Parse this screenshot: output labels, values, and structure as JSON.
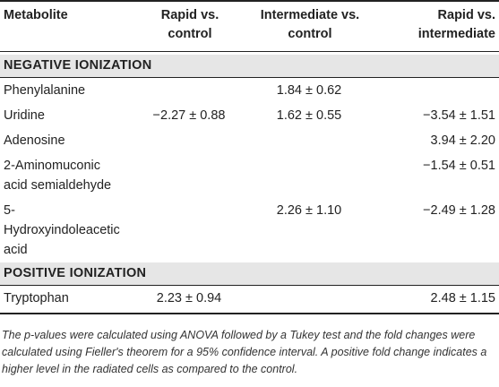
{
  "table": {
    "headers": {
      "metabolite": "Metabolite",
      "rapid_vs_control": "Rapid vs. control",
      "intermediate_vs_control": "Intermediate vs. control",
      "rapid_vs_intermediate": "Rapid vs. intermediate"
    },
    "sections": [
      {
        "title": "NEGATIVE IONIZATION",
        "rows": [
          {
            "metabolite": "Phenylalanine",
            "rapid_vs_control": "",
            "intermediate_vs_control": "1.84 ± 0.62",
            "rapid_vs_intermediate": ""
          },
          {
            "metabolite": "Uridine",
            "rapid_vs_control": "−2.27 ± 0.88",
            "intermediate_vs_control": "1.62 ± 0.55",
            "rapid_vs_intermediate": "−3.54 ± 1.51"
          },
          {
            "metabolite": "Adenosine",
            "rapid_vs_control": "",
            "intermediate_vs_control": "",
            "rapid_vs_intermediate": "3.94 ± 2.20"
          },
          {
            "metabolite": "2-Aminomuconic acid semialdehyde",
            "rapid_vs_control": "",
            "intermediate_vs_control": "",
            "rapid_vs_intermediate": "−1.54 ± 0.51"
          },
          {
            "metabolite": "5-Hydroxyindoleacetic acid",
            "rapid_vs_control": "",
            "intermediate_vs_control": "2.26 ± 1.10",
            "rapid_vs_intermediate": "−2.49 ± 1.28"
          }
        ]
      },
      {
        "title": "POSITIVE IONIZATION",
        "rows": [
          {
            "metabolite": "Tryptophan",
            "rapid_vs_control": "2.23 ± 0.94",
            "intermediate_vs_control": "",
            "rapid_vs_intermediate": "2.48 ± 1.15"
          }
        ]
      }
    ]
  },
  "footnote": "The p-values were calculated using ANOVA followed by a Tukey test and the fold changes were calculated using Fieller's theorem for a 95% confidence interval. A positive fold change indicates a higher level in the radiated cells as compared to the control."
}
